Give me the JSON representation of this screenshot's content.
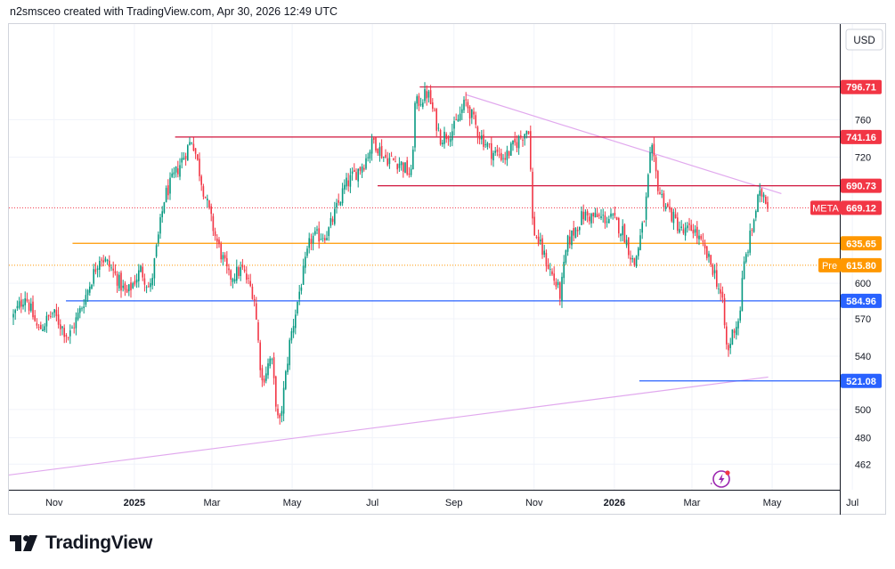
{
  "header": {
    "caption": "n2smsceo created with TradingView.com, Apr 30, 2026 12:49 UTC"
  },
  "brand": {
    "name": "TradingView"
  },
  "chart_data": {
    "type": "candlestick",
    "symbol": "META",
    "currency": "USD",
    "current_price": 669.12,
    "premarket_label": "Pre",
    "premarket_price": 615.8,
    "y_scale": "log",
    "ylim": [
      447,
      850
    ],
    "y_ticks": [
      462,
      480,
      500,
      521.08,
      540,
      570,
      584.96,
      600,
      615.8,
      635.65,
      669.12,
      690.73,
      720,
      741.16,
      760,
      796.71
    ],
    "x_ticks": [
      "Nov",
      "2025",
      "Mar",
      "May",
      "Jul",
      "Sep",
      "Nov",
      "2026",
      "Mar",
      "May",
      "Jul"
    ],
    "grid": true,
    "levels": [
      {
        "value": 796.71,
        "color": "#d0143b",
        "label_bg": "#f23645",
        "from": "2025-08-06"
      },
      {
        "value": 741.16,
        "color": "#d0143b",
        "label_bg": "#f23645",
        "from": "2025-02-01"
      },
      {
        "value": 690.73,
        "color": "#d0143b",
        "label_bg": "#f23645",
        "from": "2025-07-05"
      },
      {
        "value": 635.65,
        "color": "#ff9800",
        "label_bg": "#ff9800",
        "from": "2024-11-15"
      },
      {
        "value": 584.96,
        "color": "#2962ff",
        "label_bg": "#2962ff",
        "from": "2024-11-10"
      },
      {
        "value": 521.08,
        "color": "#2962ff",
        "label_bg": "#2962ff",
        "from": "2026-01-20"
      }
    ],
    "trendlines": [
      {
        "from": {
          "date": "2024-09-20",
          "price": 454
        },
        "to": {
          "date": "2026-04-28",
          "price": 524
        },
        "color": "#e1a9ee"
      },
      {
        "from": {
          "date": "2025-09-10",
          "price": 788
        },
        "to": {
          "date": "2026-05-08",
          "price": 683
        },
        "color": "#e1a9ee"
      }
    ],
    "close_path": [
      [
        "2024-10-01",
        572
      ],
      [
        "2024-10-10",
        590
      ],
      [
        "2024-10-20",
        560
      ],
      [
        "2024-10-31",
        575
      ],
      [
        "2024-11-12",
        555
      ],
      [
        "2024-11-22",
        580
      ],
      [
        "2024-12-06",
        625
      ],
      [
        "2024-12-15",
        612
      ],
      [
        "2024-12-26",
        590
      ],
      [
        "2025-01-06",
        612
      ],
      [
        "2025-01-13",
        594
      ],
      [
        "2025-01-24",
        680
      ],
      [
        "2025-02-02",
        705
      ],
      [
        "2025-02-14",
        740
      ],
      [
        "2025-02-22",
        690
      ],
      [
        "2025-03-04",
        640
      ],
      [
        "2025-03-14",
        605
      ],
      [
        "2025-03-24",
        612
      ],
      [
        "2025-04-02",
        590
      ],
      [
        "2025-04-08",
        520
      ],
      [
        "2025-04-15",
        540
      ],
      [
        "2025-04-21",
        485
      ],
      [
        "2025-04-29",
        550
      ],
      [
        "2025-05-06",
        590
      ],
      [
        "2025-05-15",
        640
      ],
      [
        "2025-05-28",
        645
      ],
      [
        "2025-06-10",
        690
      ],
      [
        "2025-06-25",
        715
      ],
      [
        "2025-07-02",
        738
      ],
      [
        "2025-07-10",
        720
      ],
      [
        "2025-07-22",
        714
      ],
      [
        "2025-07-31",
        700
      ],
      [
        "2025-08-02",
        775
      ],
      [
        "2025-08-12",
        790
      ],
      [
        "2025-08-22",
        740
      ],
      [
        "2025-09-01",
        750
      ],
      [
        "2025-09-10",
        780
      ],
      [
        "2025-09-20",
        745
      ],
      [
        "2025-09-30",
        725
      ],
      [
        "2025-10-10",
        720
      ],
      [
        "2025-10-20",
        738
      ],
      [
        "2025-10-28",
        752
      ],
      [
        "2025-10-31",
        650
      ],
      [
        "2025-11-10",
        620
      ],
      [
        "2025-11-21",
        590
      ],
      [
        "2025-11-26",
        635
      ],
      [
        "2025-12-08",
        662
      ],
      [
        "2025-12-18",
        660
      ],
      [
        "2025-12-31",
        658
      ],
      [
        "2026-01-08",
        646
      ],
      [
        "2026-01-16",
        615
      ],
      [
        "2026-01-24",
        660
      ],
      [
        "2026-01-29",
        730
      ],
      [
        "2026-02-04",
        685
      ],
      [
        "2026-02-12",
        665
      ],
      [
        "2026-02-22",
        645
      ],
      [
        "2026-03-02",
        650
      ],
      [
        "2026-03-10",
        630
      ],
      [
        "2026-03-18",
        610
      ],
      [
        "2026-03-24",
        585
      ],
      [
        "2026-03-28",
        540
      ],
      [
        "2026-04-01",
        560
      ],
      [
        "2026-04-06",
        570
      ],
      [
        "2026-04-09",
        612
      ],
      [
        "2026-04-14",
        640
      ],
      [
        "2026-04-20",
        676
      ],
      [
        "2026-04-24",
        685
      ],
      [
        "2026-04-29",
        669
      ]
    ]
  }
}
